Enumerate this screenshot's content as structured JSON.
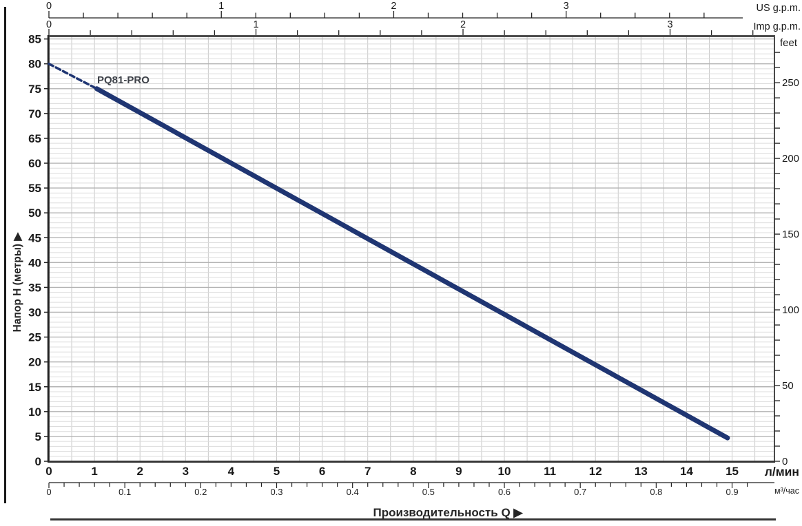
{
  "chart_data": {
    "type": "line",
    "x_title": "Производительность Q ▶",
    "series_label": "PQ81-PRO",
    "grid": {
      "vertical_color": "#c9c9c9",
      "minor_color": "#dcdcdc",
      "major_color": "#b3b3b3",
      "vertical_step_lmin": 0.5,
      "minor_step_m": 1,
      "major_step_m": 5
    },
    "x_axis_bottom": {
      "unit": "л/мин",
      "ticks": [
        0,
        1,
        2,
        3,
        4,
        5,
        6,
        7,
        8,
        9,
        10,
        11,
        12,
        13,
        14,
        15
      ],
      "range": [
        0,
        15.93
      ]
    },
    "x_axis_bottom2": {
      "unit": "м³/час",
      "ticks": [
        "0",
        "0.1",
        "0.2",
        "0.3",
        "0.4",
        "0.5",
        "0.6",
        "0.7",
        "0.8",
        "0.9"
      ],
      "tick_values": [
        0,
        0.1,
        0.2,
        0.3,
        0.4,
        0.5,
        0.6,
        0.7,
        0.8,
        0.9
      ],
      "minor_tick_step": 0.02,
      "max_minor_tick": 0.92,
      "lmin_per_unit": 16.6667
    },
    "x_axis_top_us": {
      "unit": "US g.p.m.",
      "ticks": [
        0,
        1,
        2,
        3
      ],
      "minor_tick_step": 0.2,
      "max_minor_tick": 3.8,
      "lmin_per_unit": 3.7854
    },
    "x_axis_top_imp": {
      "unit": "Imp g.p.m.",
      "ticks": [
        0,
        1,
        2,
        3
      ],
      "minor_tick_step": 0.2,
      "max_minor_tick": 3.4,
      "lmin_per_unit": 4.5461
    },
    "y_axis_left": {
      "label": "Напор H (метры) ▶",
      "ticks": [
        0,
        5,
        10,
        15,
        20,
        25,
        30,
        35,
        40,
        45,
        50,
        55,
        60,
        65,
        70,
        75,
        80,
        85
      ],
      "range": [
        0,
        85.5
      ]
    },
    "y_axis_right": {
      "unit": "feet",
      "ticks": [
        0,
        50,
        100,
        150,
        200,
        250
      ],
      "minor_tick_step": 10,
      "max_minor_tick": 270,
      "m_per_unit": 0.3048
    },
    "series": [
      {
        "name": "PQ81-PRO",
        "color": "#1f3572",
        "segments": [
          {
            "style": "dashed",
            "points": [
              [
                0,
                80
              ],
              [
                1.05,
                75
              ]
            ]
          },
          {
            "style": "solid",
            "points": [
              [
                1.05,
                75
              ],
              [
                14.9,
                4.7
              ]
            ]
          }
        ]
      }
    ]
  }
}
